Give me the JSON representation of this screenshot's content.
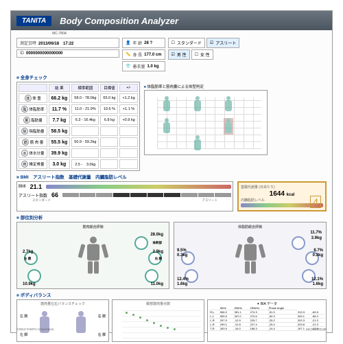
{
  "header": {
    "brand": "TANITA",
    "title": "Body Composition Analyzer",
    "model": "MC-780A"
  },
  "info": {
    "date_label": "測定日時",
    "date": "2013/06/18　17:22",
    "id_label": "ID",
    "id": "0000000000000000",
    "age_label": "年 齢",
    "age": "28 ?",
    "height_label": "身 長",
    "height": "177.0 cm",
    "clothes_label": "着衣量",
    "clothes": "1.0 kg",
    "type_std": "スタンダード",
    "type_ath": "アスリート",
    "sex_m": "男 性",
    "sex_f": "女 性"
  },
  "check": {
    "title": "全身チェック",
    "cols": [
      "",
      "結 果",
      "標準範囲",
      "目標値",
      "+/-"
    ],
    "rows": [
      {
        "ic": "体",
        "n": "体 重",
        "r": "66.2 kg",
        "s": "58.0 - 78.0kg",
        "t": "65.0 kg",
        "d": "+1.2 kg"
      },
      {
        "ic": "脂",
        "n": "体脂肪率",
        "r": "11.7 %",
        "s": "11.0 - 21.9%",
        "t": "10.6 %",
        "d": "+1.1 %"
      },
      {
        "ic": "量",
        "n": "脂肪量",
        "r": "7.7 kg",
        "s": "6.3 - 16.4kg",
        "t": "6.8 kg",
        "d": "+0.9 kg"
      },
      {
        "ic": "除",
        "n": "除脂肪量",
        "r": "58.5 kg",
        "s": "",
        "t": "",
        "d": ""
      },
      {
        "ic": "筋",
        "n": "筋 肉 量",
        "r": "55.5 kg",
        "s": "50.9 - 59.2kg",
        "t": "",
        "d": ""
      },
      {
        "ic": "水",
        "n": "体水分量",
        "r": "39.9 kg",
        "s": "",
        "t": "",
        "d": ""
      },
      {
        "ic": "骨",
        "n": "推定骨量",
        "r": "3.0 kg",
        "s": "2.5 -　3.0kg",
        "t": "",
        "d": ""
      }
    ],
    "chart_title": "体脂肪率と筋肉量による体型判定"
  },
  "bmi": {
    "title": "BMI　アスリート指数　基礎代謝量　内臓脂肪レベル",
    "bmi_l": "BMI",
    "bmi_v": "21.1",
    "ath_l": "アスリート指数",
    "ath_v": "66",
    "std": "スタンダード",
    "ath": "アスリート",
    "kcal_l": "基礎代謝量 (日あたり)",
    "kcal_v": "1644",
    "kcal_u": "kcal",
    "vf_l": "内臓脂肪レベル",
    "star": "4",
    "lo": "少なめ",
    "mid": "標準",
    "hi": "多すぎ"
  },
  "anal": {
    "title": "部位別分析",
    "p1": "筋肉総合評価",
    "p2": "体脂肪総合評価",
    "trunk": "体幹部",
    "la": "左 腕",
    "ra": "右 腕",
    "ll": "左 脚",
    "rl": "右 脚",
    "m": {
      "trunk": "28.0kg",
      "la": "2.7kg",
      "ra": "2.9kg",
      "ll": "10.9kg",
      "rl": "11.0kg"
    },
    "f": {
      "trunk_p": "11.7%",
      "trunk_kg": "3.9kg",
      "la_p": "9.5%",
      "la_kg": "0.3kg",
      "ra_p": "8.7%",
      "ra_kg": "0.3kg",
      "ll_p": "12.4%",
      "ll_kg": "1.6kg",
      "rl_p": "12.1%",
      "rl_kg": "1.6kg"
    }
  },
  "bal": {
    "title": "ボディバランス",
    "b1": "筋肉量左右バランスチェック",
    "b2": "脚部筋肉量点数",
    "lu": "左 腕",
    "ru": "右 腕",
    "ll": "左 脚",
    "rl": "右 脚",
    "bia": "BIA データ",
    "freq": [
      "5kHz",
      "50kHz",
      "250kHz",
      "Phase Angle"
    ],
    "parts": [
      "R-L",
      "L-L",
      "L-R",
      "L-R",
      "T-R"
    ],
    "data": [
      [
        "506.0",
        "351.1",
        "274.3",
        "-51.3",
        "313.3",
        "-69.5"
      ],
      [
        "505.5",
        "347.0",
        "270.6",
        "-50.3",
        "309.1",
        "-68.3"
      ],
      [
        "297.9",
        "-12.9",
        "225.7",
        "-25.2",
        "202.3",
        "-21.3"
      ],
      [
        "299.1",
        "-12.8",
        "227.4",
        "-25.4",
        "203.8",
        "-21.3"
      ],
      [
        "263.9",
        "-16.0",
        "188.3",
        "-24.4",
        "167.1",
        "-17.5"
      ]
    ]
  },
  "foot": {
    "c": "©2013 TANITA Corporation.",
    "code": "MC78007013B"
  }
}
